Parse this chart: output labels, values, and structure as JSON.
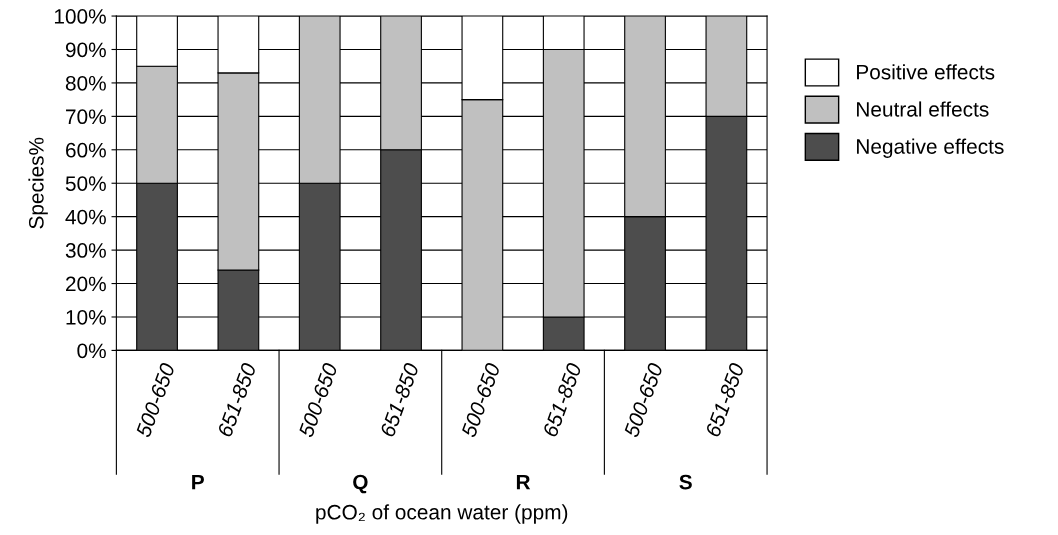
{
  "chart_data": {
    "type": "bar",
    "stacked": true,
    "xlabel": "pCO₂ of ocean water (ppm)",
    "ylabel": "Species%",
    "categories": [
      "500-650",
      "651-850",
      "500-650",
      "651-850",
      "500-650",
      "651-850",
      "500-650",
      "651-850"
    ],
    "series": [
      {
        "name": "Negative effects",
        "color": "#4d4d4d",
        "values": [
          50,
          24,
          50,
          60,
          0,
          10,
          40,
          70
        ]
      },
      {
        "name": "Neutral effects",
        "color": "#c0c0c0",
        "values": [
          35,
          59,
          50,
          40,
          75,
          80,
          60,
          30
        ]
      },
      {
        "name": "Positive effects",
        "color": "#ffffff",
        "values": [
          15,
          17,
          0,
          0,
          25,
          10,
          0,
          0
        ]
      }
    ],
    "annotations": [
      "P",
      "Q",
      "R",
      "S"
    ],
    "ylim": [
      0,
      100
    ],
    "yticks": [
      {
        "value": 0,
        "label": "0%"
      },
      {
        "value": 10,
        "label": "10%"
      },
      {
        "value": 20,
        "label": "20%"
      },
      {
        "value": 30,
        "label": "30%"
      },
      {
        "value": 40,
        "label": "40%"
      },
      {
        "value": 50,
        "label": "50%"
      },
      {
        "value": 60,
        "label": "60%"
      },
      {
        "value": 70,
        "label": "70%"
      },
      {
        "value": 80,
        "label": "80%"
      },
      {
        "value": 90,
        "label": "90%"
      },
      {
        "value": 100,
        "label": "100%"
      }
    ],
    "grid": "y",
    "legend": "right"
  }
}
